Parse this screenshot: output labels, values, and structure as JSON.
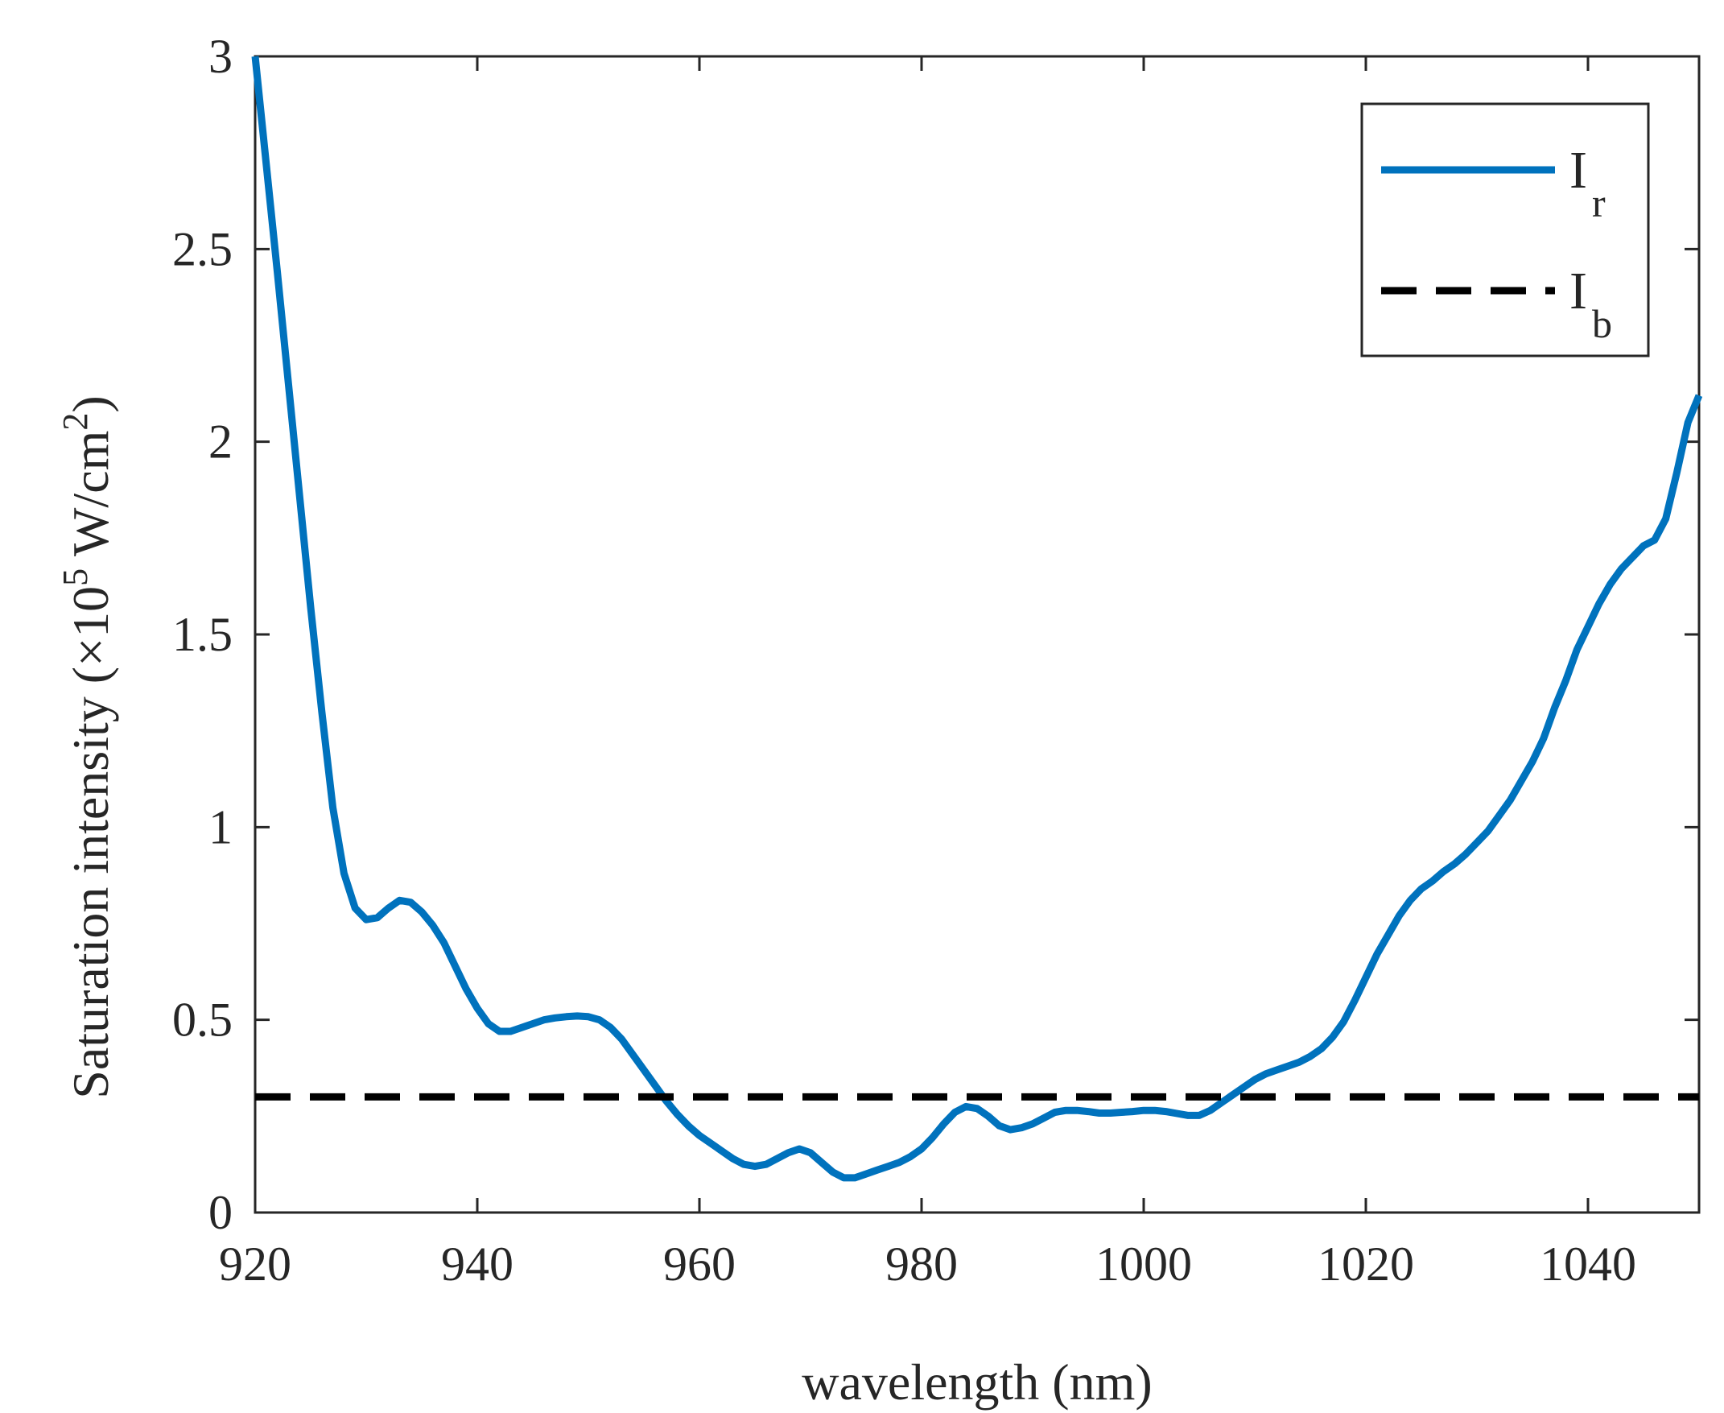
{
  "chart_data": {
    "type": "line",
    "xlabel": "wavelength (nm)",
    "ylabel": {
      "main": "Saturation intensity (×10",
      "exp": "5",
      "unit": " W/cm",
      "unit_exp": "2",
      "close": ")"
    },
    "xlim": [
      920,
      1050
    ],
    "ylim": [
      0,
      3
    ],
    "xticks": [
      920,
      940,
      960,
      980,
      1000,
      1020,
      1040
    ],
    "yticks": [
      0,
      0.5,
      1,
      1.5,
      2,
      2.5,
      3
    ],
    "ytick_labels": [
      "0",
      "0.5",
      "1",
      "1.5",
      "2",
      "2.5",
      "3"
    ],
    "grid": false,
    "legend_position": "top-right",
    "series": [
      {
        "label": "I",
        "label_sub": "r",
        "color": "#0072BD",
        "style": "solid",
        "x": [
          920,
          921,
          922,
          923,
          924,
          925,
          926,
          927,
          928,
          929,
          930,
          931,
          932,
          933,
          934,
          935,
          936,
          937,
          938,
          939,
          940,
          941,
          942,
          943,
          944,
          945,
          946,
          947,
          948,
          949,
          950,
          951,
          952,
          953,
          954,
          955,
          956,
          957,
          958,
          959,
          960,
          961,
          962,
          963,
          964,
          965,
          966,
          967,
          968,
          969,
          970,
          971,
          972,
          973,
          974,
          975,
          976,
          977,
          978,
          979,
          980,
          981,
          982,
          983,
          984,
          985,
          986,
          987,
          988,
          989,
          990,
          991,
          992,
          993,
          994,
          995,
          996,
          997,
          998,
          999,
          1000,
          1001,
          1002,
          1003,
          1004,
          1005,
          1006,
          1007,
          1008,
          1009,
          1010,
          1011,
          1012,
          1013,
          1014,
          1015,
          1016,
          1017,
          1018,
          1019,
          1020,
          1021,
          1022,
          1023,
          1024,
          1025,
          1026,
          1027,
          1028,
          1029,
          1030,
          1031,
          1032,
          1033,
          1034,
          1035,
          1036,
          1037,
          1038,
          1039,
          1040,
          1041,
          1042,
          1043,
          1044,
          1045,
          1046,
          1047,
          1048,
          1049,
          1050
        ],
        "y": [
          3.0,
          2.72,
          2.44,
          2.15,
          1.86,
          1.57,
          1.3,
          1.05,
          0.88,
          0.79,
          0.76,
          0.765,
          0.79,
          0.81,
          0.805,
          0.78,
          0.745,
          0.7,
          0.64,
          0.58,
          0.53,
          0.49,
          0.47,
          0.47,
          0.48,
          0.49,
          0.5,
          0.505,
          0.508,
          0.51,
          0.508,
          0.5,
          0.48,
          0.45,
          0.41,
          0.37,
          0.33,
          0.29,
          0.255,
          0.225,
          0.2,
          0.18,
          0.16,
          0.14,
          0.125,
          0.12,
          0.125,
          0.14,
          0.155,
          0.165,
          0.155,
          0.13,
          0.105,
          0.09,
          0.09,
          0.1,
          0.11,
          0.12,
          0.13,
          0.145,
          0.165,
          0.195,
          0.23,
          0.26,
          0.275,
          0.27,
          0.25,
          0.225,
          0.215,
          0.22,
          0.23,
          0.245,
          0.26,
          0.265,
          0.265,
          0.262,
          0.258,
          0.258,
          0.26,
          0.262,
          0.265,
          0.265,
          0.262,
          0.257,
          0.252,
          0.252,
          0.265,
          0.285,
          0.305,
          0.325,
          0.345,
          0.36,
          0.37,
          0.38,
          0.39,
          0.405,
          0.425,
          0.455,
          0.495,
          0.55,
          0.61,
          0.67,
          0.72,
          0.77,
          0.81,
          0.84,
          0.86,
          0.885,
          0.905,
          0.93,
          0.96,
          0.99,
          1.03,
          1.07,
          1.12,
          1.17,
          1.23,
          1.31,
          1.38,
          1.46,
          1.52,
          1.58,
          1.63,
          1.67,
          1.7,
          1.73,
          1.745,
          1.8,
          1.92,
          2.05,
          2.12
        ]
      },
      {
        "label": "I",
        "label_sub": "b",
        "color": "#000000",
        "style": "dashed",
        "x": [
          920,
          1050
        ],
        "y": [
          0.3,
          0.3
        ]
      }
    ]
  }
}
